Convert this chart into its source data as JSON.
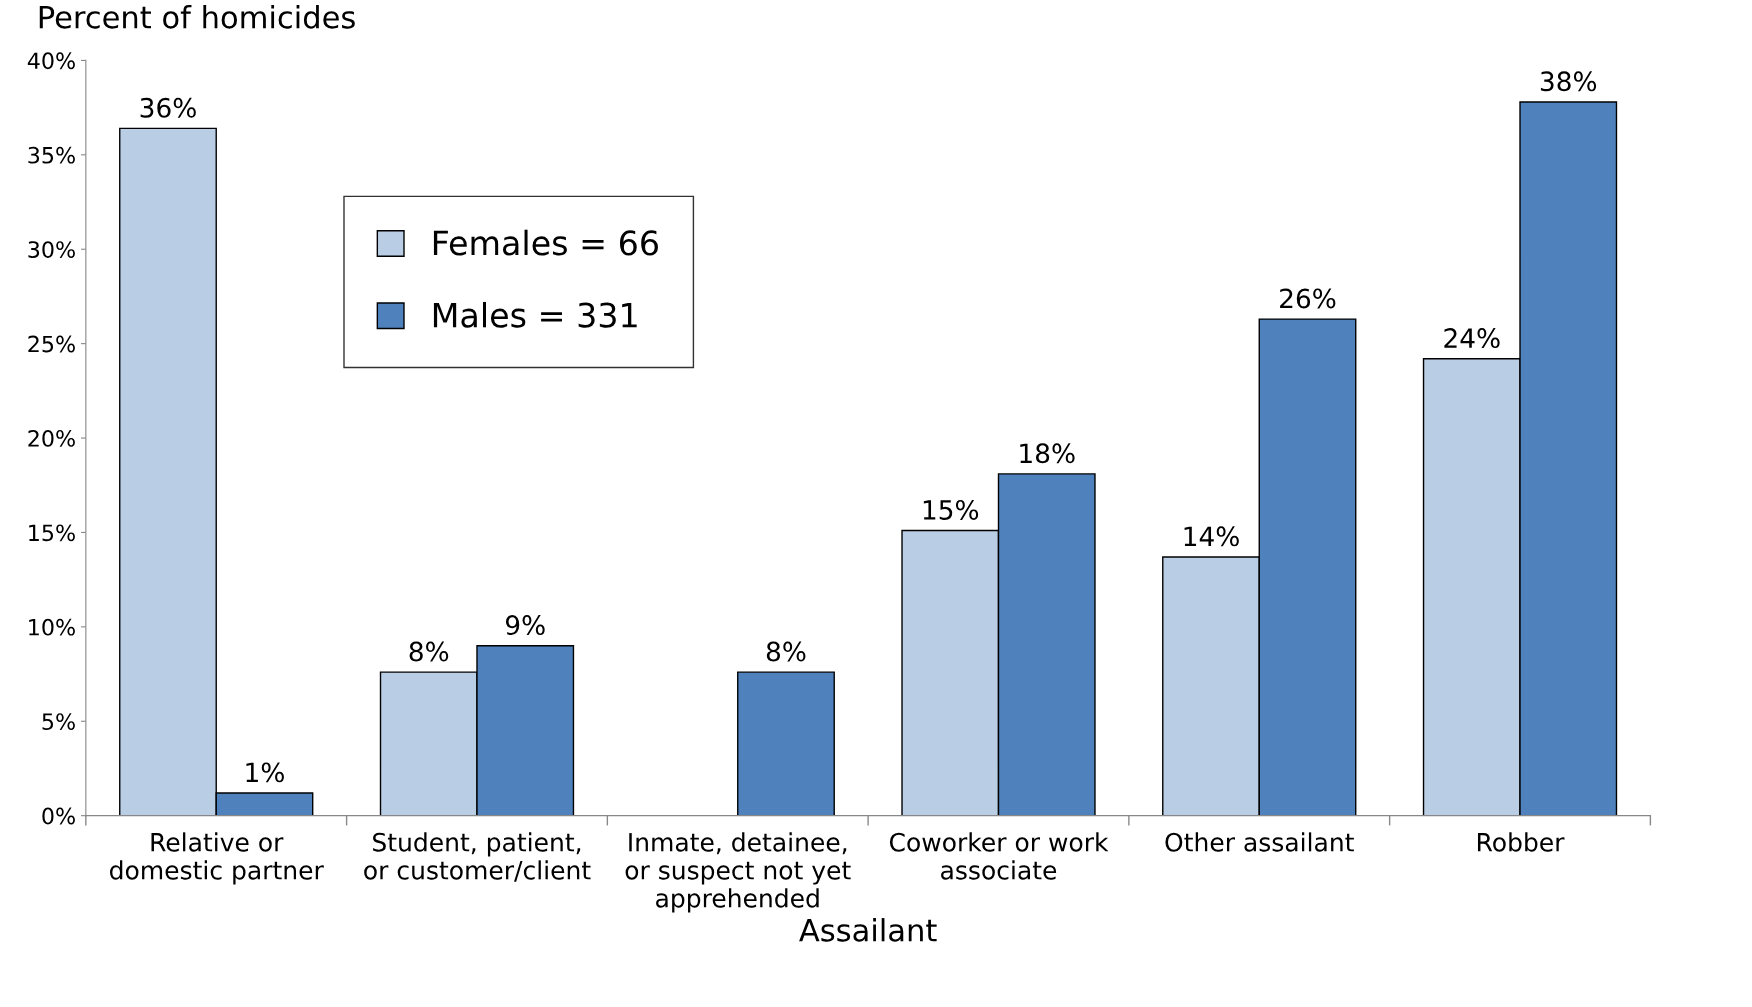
{
  "chart_data": {
    "type": "bar",
    "ylabel": "Percent of homicides",
    "xlabel": "Assailant",
    "categories": [
      "Relative or\ndomestic partner",
      "Student, patient,\nor customer/client",
      "Inmate, detainee,\nor suspect not yet\napprehended",
      "Coworker or work\nassociate",
      "Other assailant",
      "Robber"
    ],
    "series": [
      {
        "name": "Females = 66",
        "color": "#b9cde5",
        "values": [
          36.4,
          7.6,
          null,
          15.1,
          13.7,
          24.2
        ],
        "value_labels": [
          "36%",
          "8%",
          null,
          "15%",
          "14%",
          "24%"
        ]
      },
      {
        "name": "Males = 331",
        "color": "#4f81bd",
        "values": [
          1.2,
          9.0,
          7.6,
          18.1,
          26.3,
          37.8
        ],
        "value_labels": [
          "1%",
          "9%",
          "8%",
          "18%",
          "26%",
          "38%"
        ]
      }
    ],
    "ylim": [
      0,
      40
    ],
    "yticks": [
      {
        "value": 0,
        "label": "0%"
      },
      {
        "value": 5,
        "label": "5%"
      },
      {
        "value": 10,
        "label": "10%"
      },
      {
        "value": 15,
        "label": "15%"
      },
      {
        "value": 20,
        "label": "20%"
      },
      {
        "value": 25,
        "label": "25%"
      },
      {
        "value": 30,
        "label": "30%"
      },
      {
        "value": 35,
        "label": "35%"
      },
      {
        "value": 40,
        "label": "40%"
      }
    ],
    "grid": false,
    "legend": "top left"
  }
}
